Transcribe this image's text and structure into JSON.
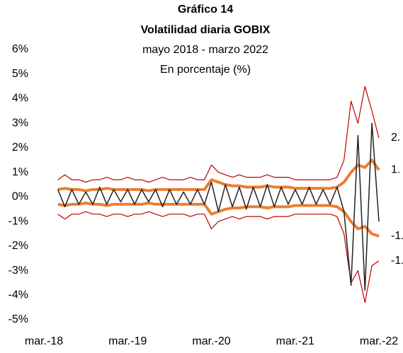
{
  "chart_data": {
    "type": "line",
    "title": "Gráfico 14",
    "subtitle": "Volatilidad diaria GOBIX",
    "subtitle2": "mayo 2018 - marzo 2022",
    "y_label": "En porcentaje (%)",
    "categories": [
      "mar.-18",
      null,
      null,
      null,
      null,
      null,
      null,
      null,
      null,
      null,
      null,
      null,
      "mar.-19",
      null,
      null,
      null,
      null,
      null,
      null,
      null,
      null,
      null,
      null,
      null,
      "mar.-20",
      null,
      null,
      null,
      null,
      null,
      null,
      null,
      null,
      null,
      null,
      null,
      "mar.-21",
      null,
      null,
      null,
      null,
      null,
      null,
      null,
      null,
      null,
      null,
      null,
      "mar.-22"
    ],
    "ylim": [
      -5,
      6
    ],
    "yticks": [
      {
        "value": 6,
        "label": "6%"
      },
      {
        "value": 5,
        "label": "5%"
      },
      {
        "value": 4,
        "label": "4%"
      },
      {
        "value": 3,
        "label": "3%"
      },
      {
        "value": 2,
        "label": "2%"
      },
      {
        "value": 1,
        "label": "1%"
      },
      {
        "value": 0,
        "label": "0%"
      },
      {
        "value": -1,
        "label": "-1%"
      },
      {
        "value": -2,
        "label": "-2%"
      },
      {
        "value": -3,
        "label": "-3%"
      },
      {
        "value": -4,
        "label": "-4%"
      },
      {
        "value": -5,
        "label": "-5%"
      }
    ],
    "series": [
      {
        "color": "#c00000",
        "values": [
          null,
          null,
          0.7,
          0.9,
          0.7,
          0.7,
          0.6,
          0.7,
          0.7,
          0.8,
          0.7,
          0.7,
          0.8,
          0.7,
          0.7,
          0.6,
          0.7,
          0.8,
          0.7,
          0.7,
          0.7,
          0.8,
          0.7,
          0.7,
          1.3,
          1.0,
          0.9,
          0.8,
          0.9,
          0.8,
          0.8,
          0.8,
          0.9,
          0.8,
          0.8,
          0.8,
          0.7,
          0.7,
          0.7,
          0.7,
          0.7,
          0.7,
          0.8,
          1.5,
          3.9,
          3.0,
          4.5,
          3.5,
          2.4
        ]
      },
      {
        "color": "#ed7d31",
        "values": [
          null,
          null,
          0.3,
          0.35,
          0.3,
          0.3,
          0.25,
          0.3,
          0.3,
          0.35,
          0.3,
          0.3,
          0.3,
          0.3,
          0.3,
          0.25,
          0.3,
          0.3,
          0.3,
          0.3,
          0.3,
          0.3,
          0.3,
          0.3,
          0.7,
          0.6,
          0.5,
          0.45,
          0.45,
          0.4,
          0.4,
          0.4,
          0.45,
          0.4,
          0.4,
          0.4,
          0.35,
          0.35,
          0.35,
          0.35,
          0.35,
          0.35,
          0.4,
          0.6,
          1.0,
          1.3,
          1.2,
          1.5,
          1.1
        ]
      },
      {
        "color": "#ed7d31",
        "values": [
          null,
          null,
          -0.3,
          -0.35,
          -0.3,
          -0.3,
          -0.25,
          -0.3,
          -0.3,
          -0.35,
          -0.3,
          -0.3,
          -0.3,
          -0.3,
          -0.3,
          -0.25,
          -0.3,
          -0.3,
          -0.3,
          -0.3,
          -0.3,
          -0.3,
          -0.3,
          -0.3,
          -0.7,
          -0.6,
          -0.5,
          -0.45,
          -0.45,
          -0.4,
          -0.4,
          -0.4,
          -0.45,
          -0.4,
          -0.4,
          -0.4,
          -0.35,
          -0.35,
          -0.35,
          -0.35,
          -0.35,
          -0.35,
          -0.4,
          -0.6,
          -1.0,
          -1.3,
          -1.2,
          -1.5,
          -1.6
        ]
      },
      {
        "color": "#c00000",
        "values": [
          null,
          null,
          -0.7,
          -0.9,
          -0.7,
          -0.7,
          -0.6,
          -0.7,
          -0.7,
          -0.8,
          -0.7,
          -0.7,
          -0.8,
          -0.7,
          -0.7,
          -0.6,
          -0.7,
          -0.8,
          -0.7,
          -0.7,
          -0.7,
          -0.8,
          -0.7,
          -0.7,
          -1.3,
          -1.0,
          -0.9,
          -0.8,
          -0.9,
          -0.8,
          -0.8,
          -0.8,
          -0.9,
          -0.8,
          -0.8,
          -0.8,
          -0.7,
          -0.7,
          -0.7,
          -0.7,
          -0.7,
          -0.7,
          -0.8,
          -1.5,
          -3.5,
          -3.0,
          -4.3,
          -2.8,
          -2.6
        ]
      },
      {
        "color": "#222222",
        "values": [
          null,
          null,
          0.3,
          -0.4,
          0.3,
          -0.3,
          0.2,
          -0.3,
          0.4,
          -0.3,
          0.3,
          -0.2,
          0.3,
          -0.3,
          0.3,
          -0.2,
          0.3,
          -0.4,
          0.3,
          -0.3,
          0.2,
          -0.3,
          0.3,
          -0.3,
          0.6,
          -0.6,
          0.5,
          -0.4,
          0.4,
          -0.5,
          0.4,
          -0.4,
          0.5,
          -0.4,
          0.4,
          -0.3,
          0.3,
          -0.3,
          0.4,
          -0.3,
          0.3,
          -0.3,
          0.4,
          -0.6,
          -3.6,
          2.5,
          -3.8,
          3.0,
          -1.0
        ]
      }
    ],
    "annotations": [
      "2.",
      "1.",
      "-1.",
      "-1."
    ]
  }
}
